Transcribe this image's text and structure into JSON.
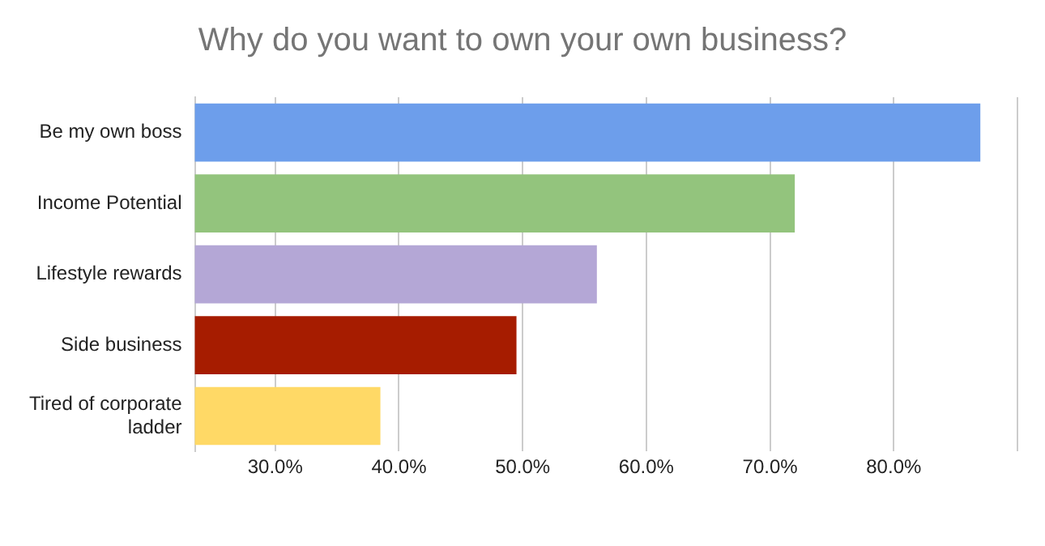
{
  "chart_data": {
    "type": "bar",
    "orientation": "horizontal",
    "title": "Why do you want to own your own business?",
    "categories": [
      "Be my own boss",
      "Income Potential",
      "Lifestyle rewards",
      "Side business",
      "Tired of corporate ladder"
    ],
    "values": [
      87,
      72,
      56,
      49.5,
      38.5
    ],
    "colors": [
      "#6d9eeb",
      "#93c47d",
      "#b4a7d6",
      "#a61c00",
      "#ffd966"
    ],
    "xlim": [
      23.5,
      90
    ],
    "xticks": [
      {
        "value": 30,
        "label": "30.0%"
      },
      {
        "value": 40,
        "label": "40.0%"
      },
      {
        "value": 50,
        "label": "50.0%"
      },
      {
        "value": 60,
        "label": "60.0%"
      },
      {
        "value": 70,
        "label": "70.0%"
      },
      {
        "value": 80,
        "label": "80.0%"
      },
      {
        "value": 90,
        "label": null
      }
    ],
    "grid": "x"
  }
}
